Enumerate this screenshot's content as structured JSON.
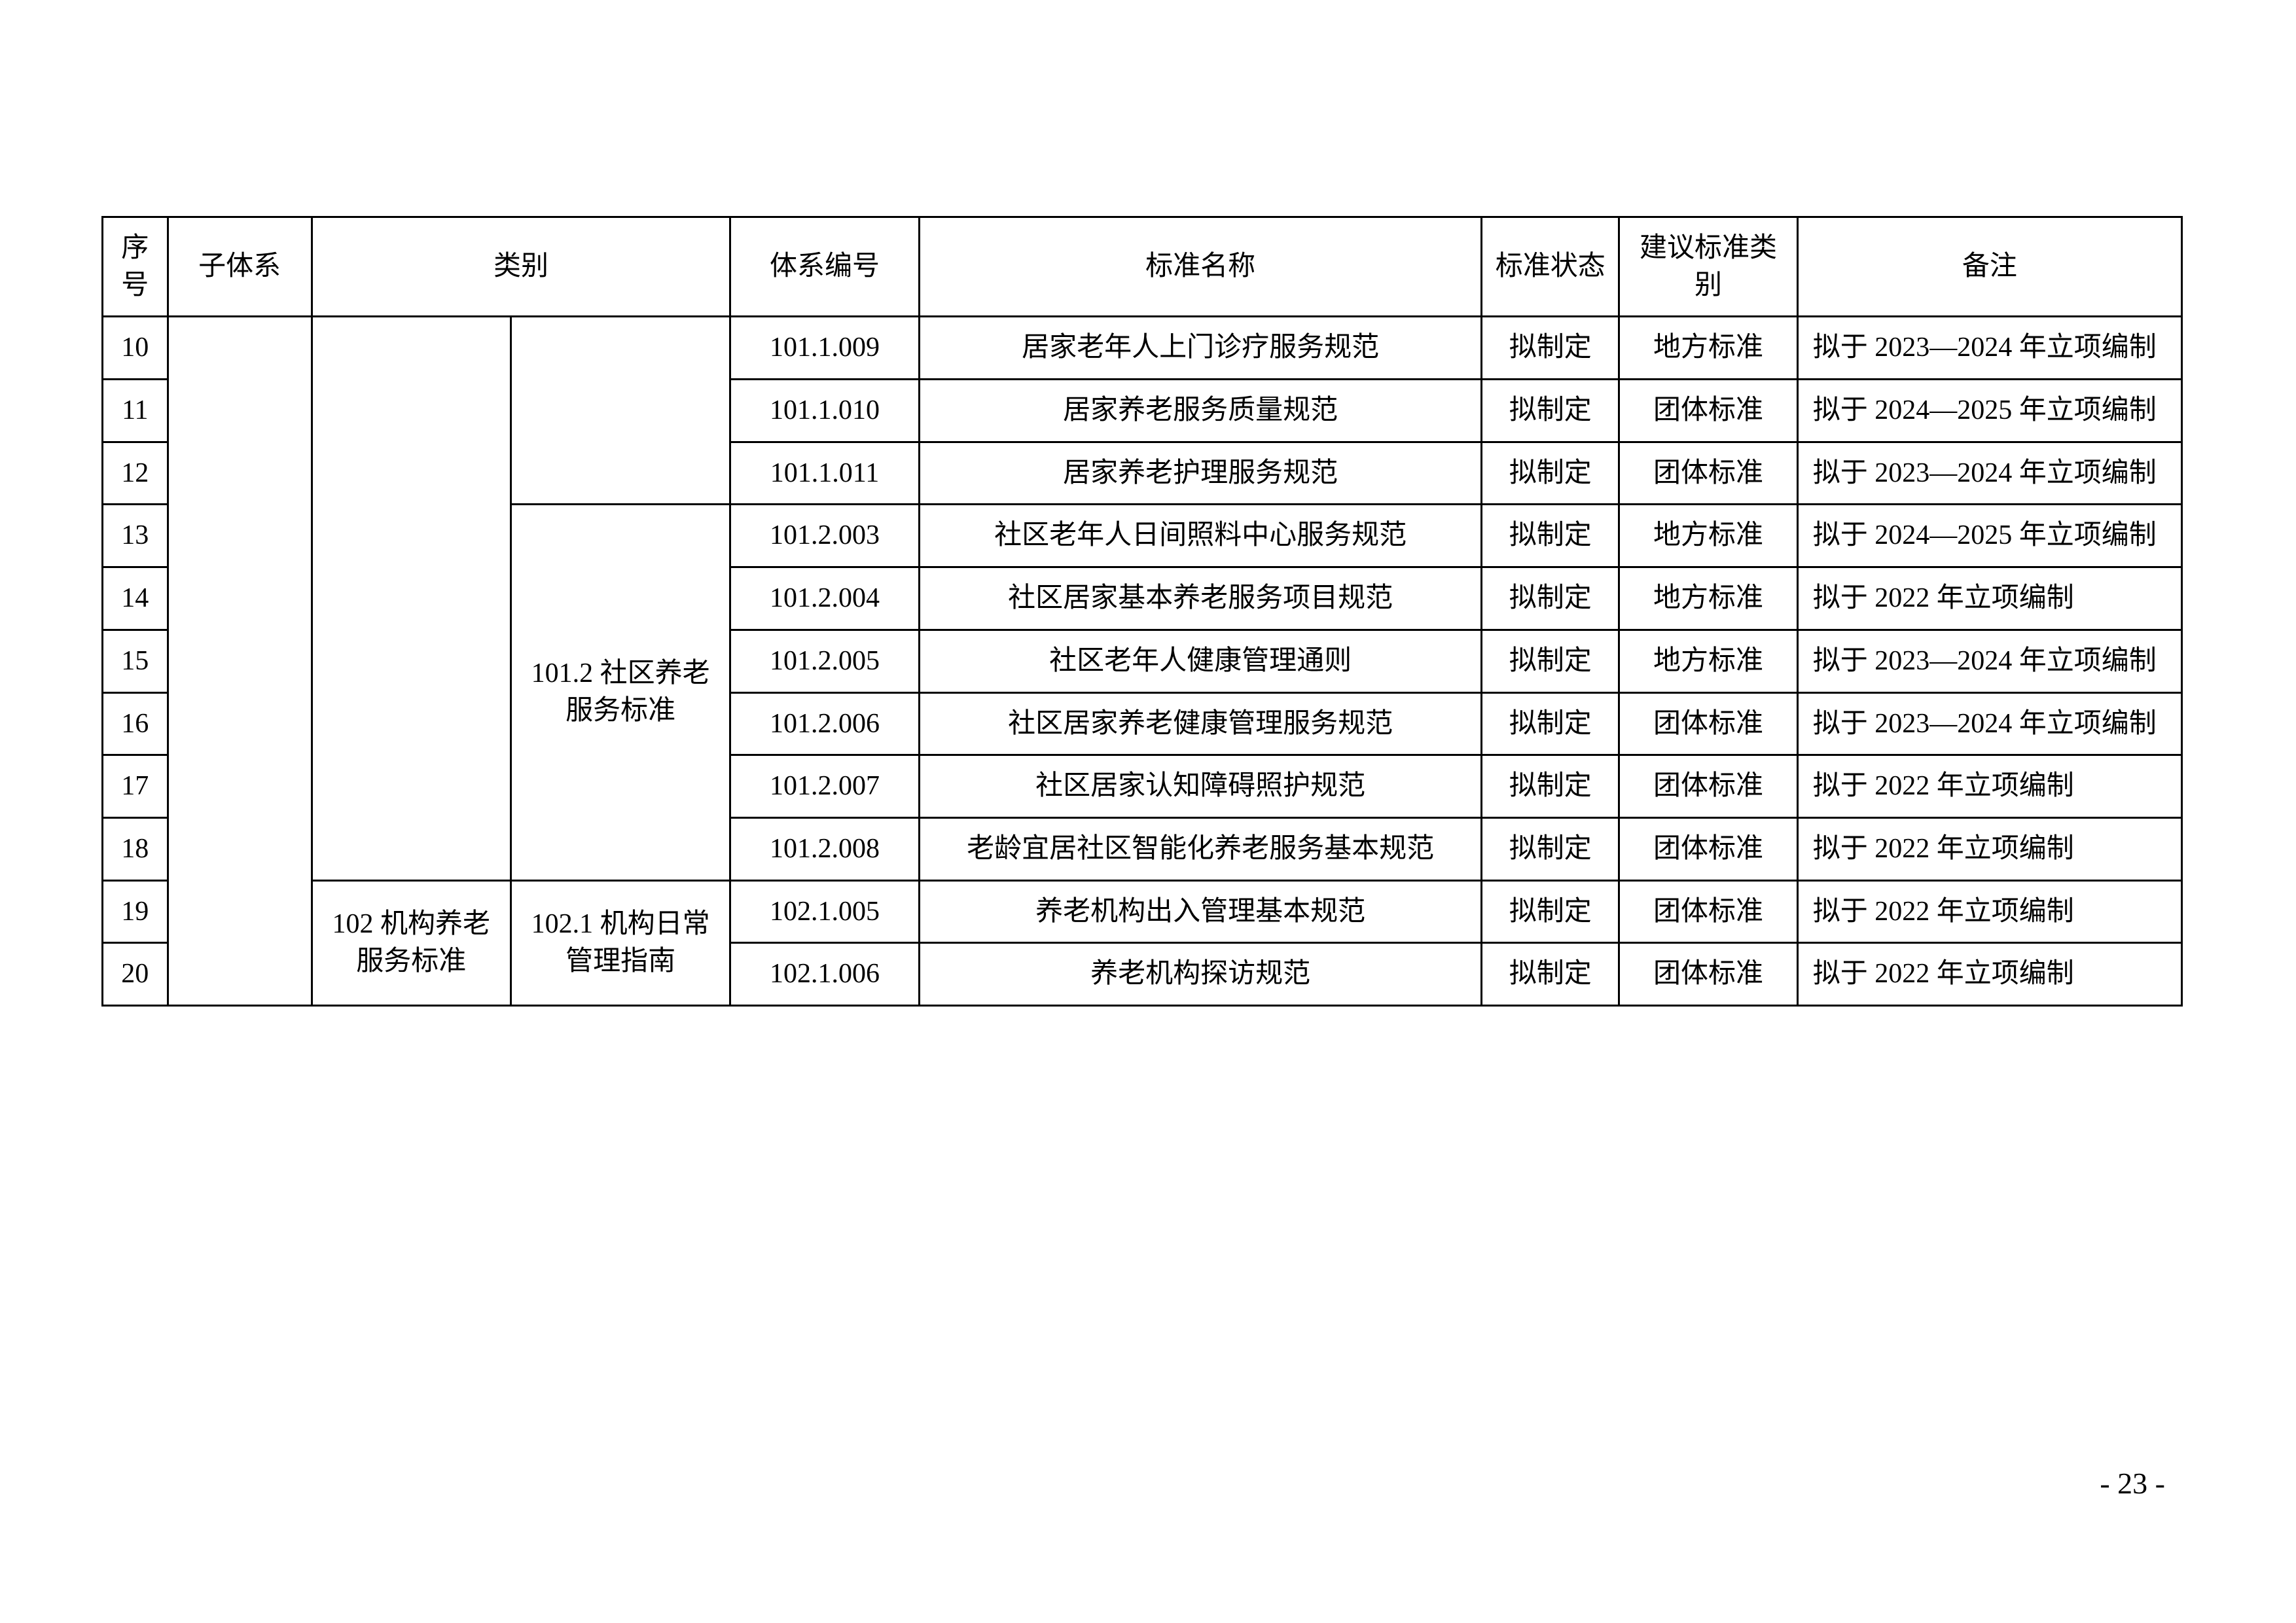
{
  "table": {
    "columns": [
      "序号",
      "子体系",
      "类别",
      "体系编号",
      "标准名称",
      "标准状态",
      "建议标准类别",
      "备注"
    ],
    "category1_a": "",
    "category1_b": "102 机构养老服务标准",
    "category2_a": "",
    "category2_b": "101.2 社区养老服务标准",
    "category2_c": "102.1 机构日常管理指南",
    "rows": [
      {
        "seq": "10",
        "code": "101.1.009",
        "name": "居家老年人上门诊疗服务规范",
        "status": "拟制定",
        "type": "地方标准",
        "remark": "拟于 2023—2024 年立项编制"
      },
      {
        "seq": "11",
        "code": "101.1.010",
        "name": "居家养老服务质量规范",
        "status": "拟制定",
        "type": "团体标准",
        "remark": "拟于 2024—2025 年立项编制"
      },
      {
        "seq": "12",
        "code": "101.1.011",
        "name": "居家养老护理服务规范",
        "status": "拟制定",
        "type": "团体标准",
        "remark": "拟于 2023—2024 年立项编制"
      },
      {
        "seq": "13",
        "code": "101.2.003",
        "name": "社区老年人日间照料中心服务规范",
        "status": "拟制定",
        "type": "地方标准",
        "remark": "拟于 2024—2025 年立项编制"
      },
      {
        "seq": "14",
        "code": "101.2.004",
        "name": "社区居家基本养老服务项目规范",
        "status": "拟制定",
        "type": "地方标准",
        "remark": "拟于 2022 年立项编制"
      },
      {
        "seq": "15",
        "code": "101.2.005",
        "name": "社区老年人健康管理通则",
        "status": "拟制定",
        "type": "地方标准",
        "remark": "拟于 2023—2024 年立项编制"
      },
      {
        "seq": "16",
        "code": "101.2.006",
        "name": "社区居家养老健康管理服务规范",
        "status": "拟制定",
        "type": "团体标准",
        "remark": "拟于 2023—2024 年立项编制"
      },
      {
        "seq": "17",
        "code": "101.2.007",
        "name": "社区居家认知障碍照护规范",
        "status": "拟制定",
        "type": "团体标准",
        "remark": "拟于 2022 年立项编制"
      },
      {
        "seq": "18",
        "code": "101.2.008",
        "name": "老龄宜居社区智能化养老服务基本规范",
        "status": "拟制定",
        "type": "团体标准",
        "remark": "拟于 2022 年立项编制"
      },
      {
        "seq": "19",
        "code": "102.1.005",
        "name": "养老机构出入管理基本规范",
        "status": "拟制定",
        "type": "团体标准",
        "remark": "拟于 2022 年立项编制"
      },
      {
        "seq": "20",
        "code": "102.1.006",
        "name": "养老机构探访规范",
        "status": "拟制定",
        "type": "团体标准",
        "remark": "拟于 2022 年立项编制"
      }
    ]
  },
  "page_number": "- 23 -"
}
